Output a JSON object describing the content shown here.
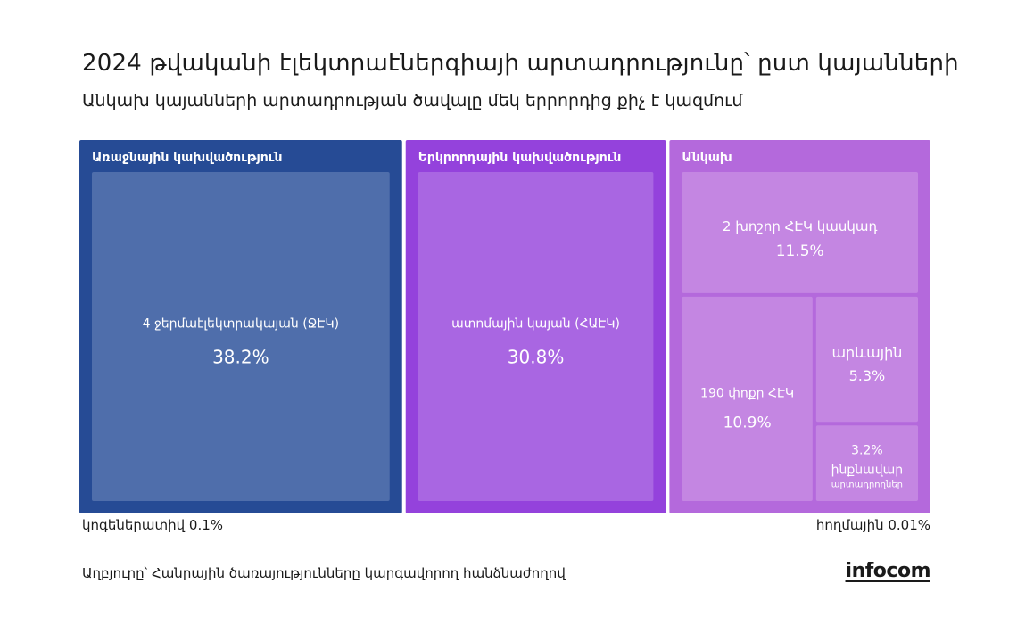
{
  "title": "2024 թվականի էլեկտրաէներգիայի արտադրությունը՝ ըստ կայանների",
  "subtitle": "Անկախ կայանների արտադրության ծավալը մեկ երրորդից քիչ է կազմում",
  "chart_data": {
    "type": "treemap",
    "unit": "%",
    "groups": [
      {
        "name": "Առաջնային կախվածություն",
        "color": "#264b95",
        "items": [
          {
            "label": "4 ջերմաէլեկտրակայան (ՋԷԿ)",
            "value": 38.2,
            "value_text": "38.2%",
            "color": "#4f6eab"
          }
        ]
      },
      {
        "name": "Երկրորդային կախվածություն",
        "color": "#9442dc",
        "items": [
          {
            "label": "ատոմային կայան (ՀԱԷԿ)",
            "value": 30.8,
            "value_text": "30.8%",
            "color": "#a966e2"
          }
        ]
      },
      {
        "name": "Անկախ",
        "color": "#b469dc",
        "items": [
          {
            "label": "2 խոշոր ՀԷԿ կասկադ",
            "value": 11.5,
            "value_text": "11.5%",
            "color": "#c486e2"
          },
          {
            "label": "190 փոքր ՀԷԿ",
            "value": 10.9,
            "value_text": "10.9%",
            "color": "#c486e2"
          },
          {
            "label": "արևային",
            "value": 5.3,
            "value_text": "5.3%",
            "color": "#c486e2"
          },
          {
            "label": "ինքնավար",
            "sublabel": "արտադրողներ",
            "value": 3.2,
            "value_text": "3.2%",
            "color": "#c486e2"
          }
        ]
      }
    ],
    "notes": [
      {
        "label": "կոգեներատիվ",
        "value": 0.1,
        "value_text": "0.1%"
      },
      {
        "label": "հողմային",
        "value": 0.01,
        "value_text": "0.01%"
      }
    ]
  },
  "footer": {
    "note_left": "կոգեներատիվ 0.1%",
    "note_right": "հողմային 0.01%",
    "source": "Աղբյուրը՝ Հանրային ծառայությունները կարգավորող հանձնաժողով",
    "logo": "infocom"
  }
}
